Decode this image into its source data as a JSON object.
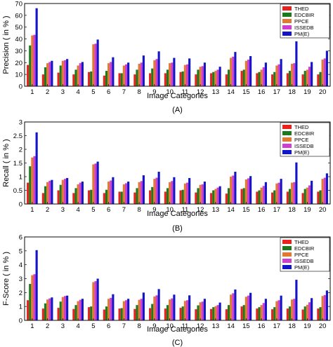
{
  "chart_data": [
    {
      "type": "bar",
      "panel_label": "(A)",
      "xlabel": "Image Categories",
      "ylabel": "Precision ( in % )",
      "ylim": [
        0,
        70
      ],
      "yticks": [
        0,
        10,
        20,
        30,
        40,
        50,
        60,
        70
      ],
      "grid": false,
      "legend_position": "top-right",
      "categories": [
        "1",
        "2",
        "3",
        "4",
        "5",
        "6",
        "7",
        "8",
        "9",
        "10",
        "11",
        "12",
        "13",
        "14",
        "15",
        "16",
        "17",
        "18",
        "19",
        "20"
      ],
      "series": [
        {
          "name": "THED",
          "color": "#e8201e",
          "values": [
            18,
            10,
            11.5,
            10,
            12,
            9,
            11,
            10,
            11,
            11,
            12,
            10,
            11,
            10,
            13,
            11,
            10,
            11,
            10,
            10
          ]
        },
        {
          "name": "EDCBIR",
          "color": "#1b7a1b",
          "values": [
            34.5,
            16,
            17.5,
            14,
            12.5,
            13,
            11,
            14,
            15,
            14,
            12.5,
            14,
            12,
            14,
            14,
            12,
            12,
            13,
            13,
            12
          ]
        },
        {
          "name": "PPCE",
          "color": "#e07a30",
          "values": [
            43,
            19.5,
            21.5,
            17.5,
            35.5,
            19.5,
            17.5,
            19,
            22,
            19.5,
            18,
            16.5,
            13,
            24,
            21.5,
            14,
            17.5,
            19,
            14,
            22.5
          ]
        },
        {
          "name": "ISSEDB",
          "color": "#d03ed0",
          "values": [
            43.5,
            20.5,
            22,
            19.5,
            36,
            20.5,
            18.5,
            20,
            23,
            20,
            18.5,
            17,
            14,
            25,
            22.5,
            16,
            18.5,
            19.5,
            16.5,
            23.5
          ]
        },
        {
          "name": "PM(E)",
          "color": "#1515c8",
          "values": [
            66,
            21.5,
            23,
            20.5,
            39.5,
            24.5,
            20,
            26,
            29.5,
            24,
            23.5,
            20,
            16.5,
            29,
            25.5,
            20,
            23,
            38,
            20.5,
            30
          ]
        }
      ]
    },
    {
      "type": "bar",
      "panel_label": "(B)",
      "xlabel": "Image Categories",
      "ylabel": "Recall ( in % )",
      "ylim": [
        0,
        3
      ],
      "yticks": [
        0,
        0.5,
        1,
        1.5,
        2,
        2.5,
        3
      ],
      "grid": false,
      "legend_position": "top-right",
      "categories": [
        "1",
        "2",
        "3",
        "4",
        "5",
        "6",
        "7",
        "8",
        "9",
        "10",
        "11",
        "12",
        "13",
        "14",
        "15",
        "16",
        "17",
        "18",
        "19",
        "20"
      ],
      "series": [
        {
          "name": "THED",
          "color": "#e8201e",
          "values": [
            0.78,
            0.4,
            0.5,
            0.4,
            0.5,
            0.4,
            0.45,
            0.42,
            0.5,
            0.45,
            0.5,
            0.42,
            0.4,
            0.38,
            0.55,
            0.45,
            0.42,
            0.45,
            0.4,
            0.45
          ]
        },
        {
          "name": "EDCBIR",
          "color": "#1b7a1b",
          "values": [
            1.38,
            0.65,
            0.7,
            0.58,
            0.52,
            0.52,
            0.45,
            0.58,
            0.62,
            0.58,
            0.52,
            0.58,
            0.5,
            0.58,
            0.58,
            0.5,
            0.5,
            0.55,
            0.55,
            0.5
          ]
        },
        {
          "name": "PPCE",
          "color": "#e07a30",
          "values": [
            1.7,
            0.8,
            0.88,
            0.72,
            1.45,
            0.82,
            0.72,
            0.8,
            0.92,
            0.8,
            0.75,
            0.7,
            0.55,
            1.0,
            0.9,
            0.6,
            0.75,
            0.78,
            0.6,
            0.92
          ]
        },
        {
          "name": "ISSEDB",
          "color": "#d03ed0",
          "values": [
            1.75,
            0.85,
            0.92,
            0.78,
            1.48,
            0.86,
            0.76,
            0.84,
            0.96,
            0.84,
            0.78,
            0.72,
            0.6,
            1.04,
            0.94,
            0.66,
            0.78,
            0.8,
            0.68,
            0.96
          ]
        },
        {
          "name": "PM(E)",
          "color": "#1515c8",
          "values": [
            2.62,
            0.88,
            0.95,
            0.82,
            1.55,
            0.98,
            0.82,
            1.05,
            1.18,
            0.98,
            0.95,
            0.82,
            0.65,
            1.18,
            1.02,
            0.8,
            0.92,
            1.52,
            0.85,
            1.12
          ]
        }
      ]
    },
    {
      "type": "bar",
      "panel_label": "(C)",
      "xlabel": "Image Categories",
      "ylabel": "F-Score ( in % )",
      "ylim": [
        0,
        6
      ],
      "yticks": [
        0,
        1,
        2,
        3,
        4,
        5,
        6
      ],
      "grid": false,
      "legend_position": "top-right",
      "categories": [
        "1",
        "2",
        "3",
        "4",
        "5",
        "6",
        "7",
        "8",
        "9",
        "10",
        "11",
        "12",
        "13",
        "14",
        "15",
        "16",
        "17",
        "18",
        "19",
        "20"
      ],
      "series": [
        {
          "name": "THED",
          "color": "#e8201e",
          "values": [
            1.45,
            0.85,
            0.9,
            0.82,
            0.95,
            0.78,
            0.85,
            0.82,
            0.88,
            0.85,
            0.9,
            0.8,
            0.82,
            0.8,
            1.0,
            0.85,
            0.8,
            0.85,
            0.78,
            0.85
          ]
        },
        {
          "name": "EDCBIR",
          "color": "#1b7a1b",
          "values": [
            2.62,
            1.22,
            1.35,
            1.1,
            1.0,
            1.0,
            0.88,
            1.1,
            1.18,
            1.1,
            1.0,
            1.08,
            0.95,
            1.1,
            1.1,
            0.95,
            0.95,
            1.0,
            1.0,
            0.95
          ]
        },
        {
          "name": "PPCE",
          "color": "#e07a30",
          "values": [
            3.25,
            1.5,
            1.68,
            1.38,
            2.75,
            1.55,
            1.38,
            1.48,
            1.72,
            1.5,
            1.4,
            1.3,
            1.02,
            1.85,
            1.7,
            1.1,
            1.38,
            1.5,
            1.12,
            1.75
          ]
        },
        {
          "name": "ISSEDB",
          "color": "#d03ed0",
          "values": [
            3.32,
            1.58,
            1.75,
            1.48,
            2.82,
            1.62,
            1.45,
            1.55,
            1.8,
            1.58,
            1.45,
            1.35,
            1.1,
            1.95,
            1.78,
            1.25,
            1.45,
            1.55,
            1.3,
            1.82
          ]
        },
        {
          "name": "PM(E)",
          "color": "#1515c8",
          "values": [
            5.05,
            1.65,
            1.78,
            1.55,
            3.0,
            1.88,
            1.55,
            2.0,
            2.25,
            1.85,
            1.8,
            1.55,
            1.28,
            2.22,
            1.98,
            1.55,
            1.78,
            2.92,
            1.6,
            2.15
          ]
        }
      ]
    }
  ]
}
